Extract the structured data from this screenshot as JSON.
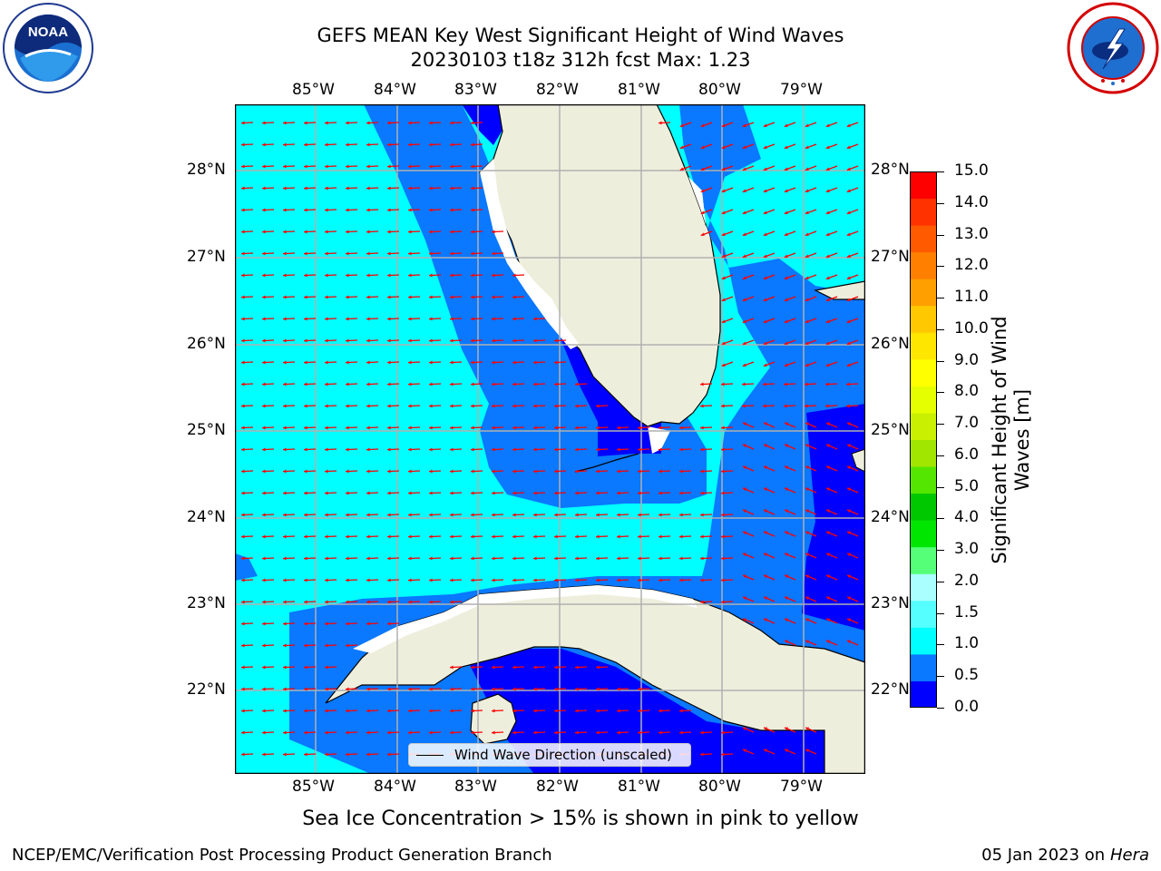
{
  "header": {
    "title_line1": "GEFS MEAN Key West Significant Height of Wind Waves",
    "title_line2": "20230103 t18z 312h fcst   Max: 1.23"
  },
  "logos": {
    "left": {
      "icon": "noaa-logo",
      "text": "NOAA",
      "ring_text": "NATIONAL OCEANIC AND ATMOSPHERIC ADMINISTRATION · U.S. DEPARTMENT OF COMMERCE"
    },
    "right": {
      "icon": "nws-logo",
      "ring_text": "NATIONAL WEATHER SERVICE"
    }
  },
  "map": {
    "lon_labels": [
      "85°W",
      "84°W",
      "83°W",
      "82°W",
      "81°W",
      "80°W",
      "79°W"
    ],
    "lat_labels": [
      "28°N",
      "27°N",
      "26°N",
      "25°N",
      "24°N",
      "23°N",
      "22°N"
    ],
    "colors": {
      "land": "#eeeedd",
      "wave_0_0_5": "#0000ff",
      "wave_0_5_1_0": "#0a78ff",
      "wave_1_0_1_5": "#00ffff",
      "arrow": "#ff0000",
      "grid": "#b0b0b0",
      "coast": "#000000"
    },
    "wind_direction": "from east, arrows pointing west"
  },
  "legend": {
    "label": "Wind Wave Direction (unscaled)"
  },
  "colorbar": {
    "title": "Significant Height of Wind Waves [m]",
    "ticks": [
      "15.0",
      "14.0",
      "13.0",
      "12.0",
      "11.0",
      "10.0",
      "9.0",
      "8.0",
      "7.0",
      "6.0",
      "5.0",
      "4.0",
      "3.0",
      "2.0",
      "1.5",
      "1.0",
      "0.5",
      "0.0"
    ],
    "colors": [
      "#0000ff",
      "#0a78ff",
      "#00ffff",
      "#55ffff",
      "#aaffff",
      "#55ff78",
      "#00e600",
      "#00c800",
      "#55e600",
      "#a0e600",
      "#c8f000",
      "#e6ff00",
      "#ffff00",
      "#ffe600",
      "#ffc800",
      "#ffa000",
      "#ff8000",
      "#ff5a00",
      "#ff3200",
      "#ff0000"
    ]
  },
  "footer": {
    "sea_ice_note": "Sea Ice Concentration > 15% is shown in pink to yellow",
    "branch": "NCEP/EMC/Verification Post Processing Product Generation Branch",
    "date": "05 Jan 2023 on ",
    "machine": "Hera"
  }
}
